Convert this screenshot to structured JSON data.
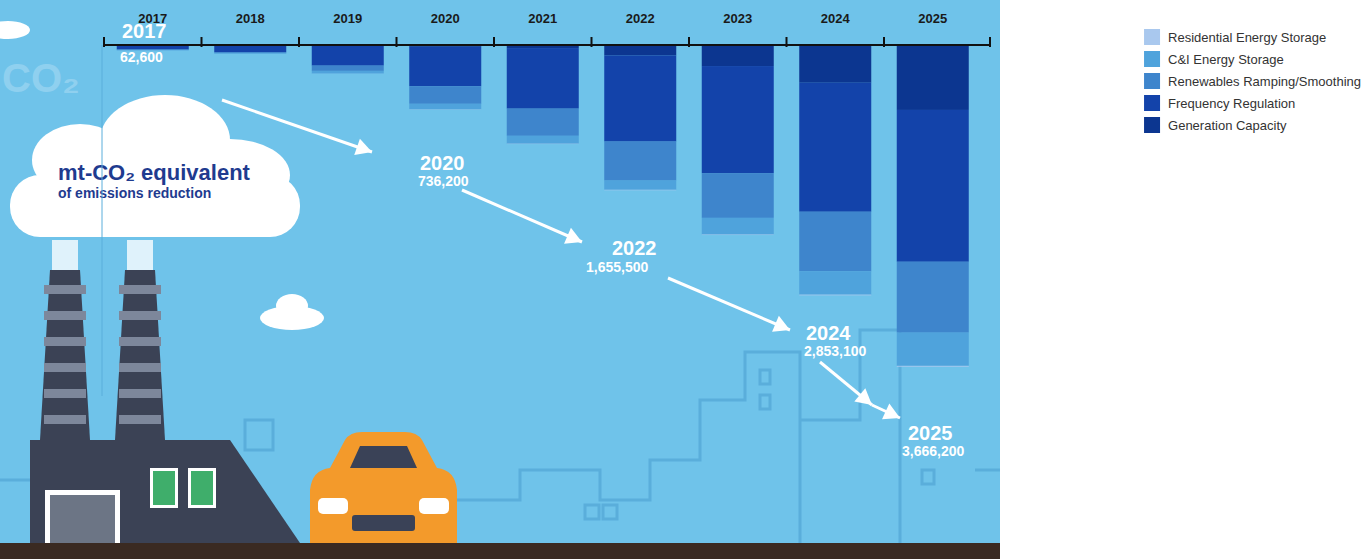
{
  "chart_data": {
    "type": "bar",
    "stacked": true,
    "title": "mt-CO₂ equivalent",
    "subtitle": "of emissions reduction",
    "background_text": "CO₂",
    "categories": [
      "2017",
      "2018",
      "2019",
      "2020",
      "2021",
      "2022",
      "2023",
      "2024",
      "2025"
    ],
    "series": [
      {
        "name": "Residential Energy Storage",
        "color": "#a9c8ee",
        "values": [
          600,
          500,
          1000,
          3000,
          4000,
          5500,
          6000,
          8100,
          10000
        ]
      },
      {
        "name": "C&I Energy Storage",
        "color": "#4fa3dc",
        "values": [
          5000,
          8000,
          30000,
          63200,
          90000,
          105000,
          190000,
          265000,
          378200
        ]
      },
      {
        "name": "Renewables Ramping/Smoothing",
        "color": "#3e85cc",
        "values": [
          6000,
          10000,
          60000,
          200000,
          310000,
          445000,
          510000,
          680000,
          808000
        ]
      },
      {
        "name": "Frequency Regulation",
        "color": "#1343aa",
        "values": [
          50000,
          80000,
          230000,
          450000,
          690000,
          980000,
          1220000,
          1470000,
          1730000
        ]
      },
      {
        "name": "Generation Capacity",
        "color": "#0c3690",
        "values": [
          1000,
          2000,
          5000,
          20000,
          35000,
          120000,
          240000,
          430000,
          740000
        ]
      }
    ],
    "ylim": [
      0,
      4000000
    ],
    "tick_labels": "x",
    "grid": false,
    "legend": "right",
    "annotations": [
      {
        "title": "2017",
        "text": "62,600"
      },
      {
        "title": "2020",
        "text": "736,200"
      },
      {
        "title": "2022",
        "text": "1,655,500"
      },
      {
        "title": "2024",
        "text": "2,853,100"
      },
      {
        "title": "2025",
        "text": "3,666,200"
      }
    ]
  }
}
